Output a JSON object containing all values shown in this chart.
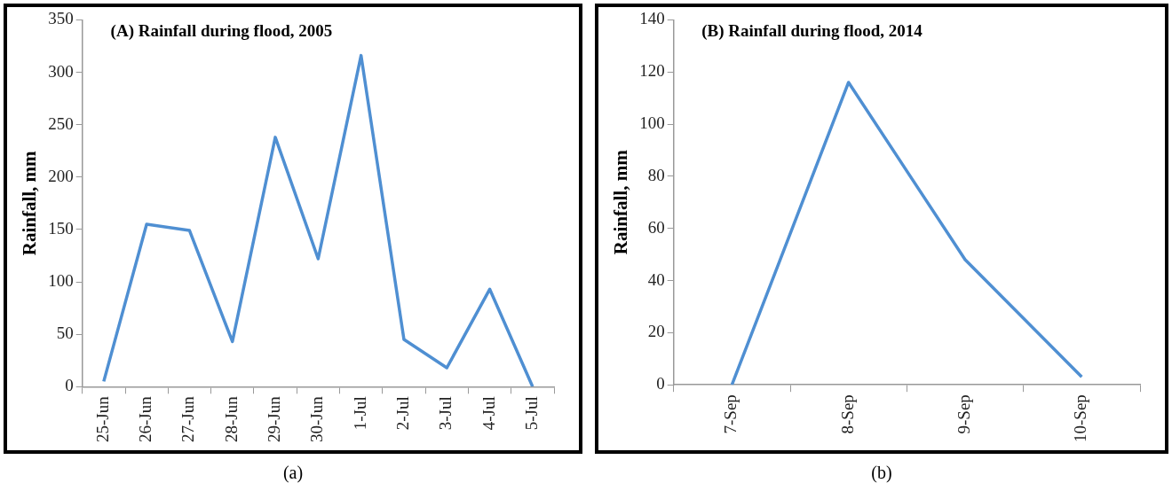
{
  "chart_data": [
    {
      "type": "line",
      "title": "(A) Rainfall during flood, 2005",
      "ylabel": "Rainfall, mm",
      "annotations": [
        "(a)"
      ],
      "marker": "none",
      "categories": [
        "25-Jun",
        "26-Jun",
        "27-Jun",
        "28-Jun",
        "29-Jun",
        "30-Jun",
        "1-Jul",
        "2-Jul",
        "3-Jul",
        "4-Jul",
        "5-Jul"
      ],
      "series": [
        {
          "color": "#4f8fd2",
          "values": [
            5,
            155,
            149,
            43,
            238,
            122,
            316,
            45,
            18,
            93,
            0
          ]
        }
      ],
      "ylim": [
        0,
        350
      ],
      "yticks": [
        0,
        50,
        100,
        150,
        200,
        250,
        300,
        350
      ]
    },
    {
      "type": "line",
      "title": "(B) Rainfall during flood, 2014",
      "ylabel": "Rainfall, mm",
      "annotations": [
        "(b)"
      ],
      "marker": "none",
      "categories": [
        "7-Sep",
        "8-Sep",
        "9-Sep",
        "10-Sep"
      ],
      "series": [
        {
          "color": "#4f8fd2",
          "values": [
            0,
            116,
            48,
            3
          ]
        }
      ],
      "ylim": [
        0,
        140
      ],
      "yticks": [
        0,
        20,
        40,
        60,
        80,
        100,
        120,
        140
      ]
    }
  ]
}
